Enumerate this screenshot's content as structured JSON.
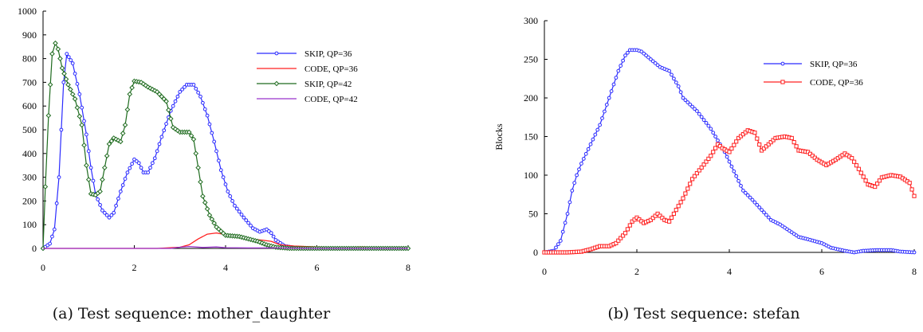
{
  "chart_data": [
    {
      "type": "line",
      "caption": "(a) Test sequence: mother_daughter",
      "xlabel": "",
      "ylabel": "",
      "xlim": [
        0,
        8
      ],
      "ylim": [
        0,
        1000
      ],
      "x_ticks": [
        0,
        2,
        4,
        6,
        8
      ],
      "y_ticks": [
        0,
        100,
        200,
        300,
        400,
        500,
        600,
        700,
        800,
        900,
        1000
      ],
      "grid": false,
      "legend_position": "top-right",
      "series": [
        {
          "name": "SKIP,   QP=36",
          "color": "#2b2bff",
          "marker": "circle",
          "points": [
            [
              0,
              0
            ],
            [
              0.15,
              20
            ],
            [
              0.25,
              80
            ],
            [
              0.35,
              300
            ],
            [
              0.45,
              700
            ],
            [
              0.52,
              820
            ],
            [
              0.65,
              780
            ],
            [
              0.8,
              650
            ],
            [
              0.95,
              480
            ],
            [
              1.05,
              340
            ],
            [
              1.15,
              230
            ],
            [
              1.3,
              160
            ],
            [
              1.45,
              130
            ],
            [
              1.55,
              150
            ],
            [
              1.7,
              240
            ],
            [
              1.85,
              320
            ],
            [
              2.0,
              375
            ],
            [
              2.1,
              360
            ],
            [
              2.2,
              320
            ],
            [
              2.3,
              320
            ],
            [
              2.45,
              380
            ],
            [
              2.6,
              470
            ],
            [
              2.8,
              580
            ],
            [
              3.0,
              660
            ],
            [
              3.15,
              690
            ],
            [
              3.3,
              690
            ],
            [
              3.45,
              640
            ],
            [
              3.6,
              560
            ],
            [
              3.75,
              450
            ],
            [
              3.9,
              330
            ],
            [
              4.05,
              240
            ],
            [
              4.2,
              180
            ],
            [
              4.4,
              130
            ],
            [
              4.6,
              85
            ],
            [
              4.75,
              70
            ],
            [
              4.9,
              80
            ],
            [
              5.0,
              65
            ],
            [
              5.1,
              35
            ],
            [
              5.3,
              10
            ],
            [
              5.6,
              0
            ],
            [
              6.0,
              0
            ],
            [
              7.0,
              0
            ],
            [
              8.0,
              0
            ]
          ]
        },
        {
          "name": "CODE, QP=36",
          "color": "#ff2020",
          "marker": "none",
          "points": [
            [
              0,
              0
            ],
            [
              2.5,
              0
            ],
            [
              3.0,
              5
            ],
            [
              3.2,
              15
            ],
            [
              3.4,
              40
            ],
            [
              3.6,
              60
            ],
            [
              3.8,
              65
            ],
            [
              4.0,
              58
            ],
            [
              4.2,
              48
            ],
            [
              4.5,
              40
            ],
            [
              4.8,
              35
            ],
            [
              5.0,
              30
            ],
            [
              5.2,
              15
            ],
            [
              5.5,
              10
            ],
            [
              6.0,
              6
            ],
            [
              6.5,
              2
            ],
            [
              7.0,
              6
            ],
            [
              7.5,
              0
            ],
            [
              8.0,
              0
            ]
          ]
        },
        {
          "name": "SKIP,   QP=42",
          "color": "#1e6b1e",
          "marker": "diamond",
          "points": [
            [
              0,
              0
            ],
            [
              0.05,
              260
            ],
            [
              0.12,
              560
            ],
            [
              0.2,
              820
            ],
            [
              0.27,
              865
            ],
            [
              0.33,
              840
            ],
            [
              0.42,
              760
            ],
            [
              0.55,
              690
            ],
            [
              0.7,
              630
            ],
            [
              0.85,
              520
            ],
            [
              0.95,
              350
            ],
            [
              1.05,
              230
            ],
            [
              1.15,
              225
            ],
            [
              1.25,
              240
            ],
            [
              1.35,
              340
            ],
            [
              1.45,
              440
            ],
            [
              1.55,
              465
            ],
            [
              1.7,
              450
            ],
            [
              1.8,
              520
            ],
            [
              1.9,
              650
            ],
            [
              2.0,
              705
            ],
            [
              2.15,
              700
            ],
            [
              2.3,
              680
            ],
            [
              2.5,
              660
            ],
            [
              2.7,
              620
            ],
            [
              2.85,
              510
            ],
            [
              3.0,
              490
            ],
            [
              3.2,
              490
            ],
            [
              3.3,
              460
            ],
            [
              3.4,
              340
            ],
            [
              3.5,
              220
            ],
            [
              3.65,
              140
            ],
            [
              3.8,
              90
            ],
            [
              4.0,
              55
            ],
            [
              4.3,
              50
            ],
            [
              4.5,
              40
            ],
            [
              4.7,
              30
            ],
            [
              4.9,
              15
            ],
            [
              5.1,
              5
            ],
            [
              5.4,
              0
            ],
            [
              6.0,
              0
            ],
            [
              7.0,
              0
            ],
            [
              8.0,
              0
            ]
          ]
        },
        {
          "name": "CODE, QP=42",
          "color": "#9933cc",
          "marker": "none",
          "points": [
            [
              0,
              0
            ],
            [
              2.8,
              0
            ],
            [
              3.0,
              5
            ],
            [
              3.2,
              8
            ],
            [
              3.5,
              4
            ],
            [
              3.8,
              6
            ],
            [
              4.0,
              3
            ],
            [
              4.5,
              2
            ],
            [
              5.0,
              2
            ],
            [
              6.0,
              0
            ],
            [
              8.0,
              0
            ]
          ]
        }
      ]
    },
    {
      "type": "line",
      "caption": "(b) Test sequence: stefan",
      "xlabel": "",
      "ylabel": "Blocks",
      "xlim": [
        0,
        8
      ],
      "ylim": [
        0,
        300
      ],
      "x_ticks": [
        0,
        2,
        4,
        6,
        8
      ],
      "y_ticks": [
        0,
        50,
        100,
        150,
        200,
        250,
        300
      ],
      "grid": false,
      "legend_position": "top-right",
      "series": [
        {
          "name": "SKIP,   QP=36",
          "color": "#2b2bff",
          "marker": "circle",
          "points": [
            [
              0,
              0
            ],
            [
              0.2,
              2
            ],
            [
              0.35,
              15
            ],
            [
              0.5,
              50
            ],
            [
              0.6,
              80
            ],
            [
              0.7,
              100
            ],
            [
              0.8,
              115
            ],
            [
              1.0,
              140
            ],
            [
              1.2,
              165
            ],
            [
              1.4,
              200
            ],
            [
              1.6,
              235
            ],
            [
              1.75,
              255
            ],
            [
              1.85,
              262
            ],
            [
              2.0,
              262
            ],
            [
              2.1,
              260
            ],
            [
              2.3,
              250
            ],
            [
              2.5,
              240
            ],
            [
              2.7,
              235
            ],
            [
              2.8,
              225
            ],
            [
              2.9,
              215
            ],
            [
              3.0,
              200
            ],
            [
              3.3,
              183
            ],
            [
              3.6,
              160
            ],
            [
              3.9,
              130
            ],
            [
              4.1,
              105
            ],
            [
              4.3,
              80
            ],
            [
              4.5,
              68
            ],
            [
              4.7,
              55
            ],
            [
              4.9,
              42
            ],
            [
              5.1,
              36
            ],
            [
              5.3,
              28
            ],
            [
              5.5,
              20
            ],
            [
              5.7,
              17
            ],
            [
              6.0,
              12
            ],
            [
              6.2,
              6
            ],
            [
              6.5,
              2
            ],
            [
              6.7,
              0
            ],
            [
              6.9,
              2
            ],
            [
              7.2,
              3
            ],
            [
              7.5,
              3
            ],
            [
              7.7,
              1
            ],
            [
              8.0,
              0
            ]
          ]
        },
        {
          "name": "CODE, QP=36",
          "color": "#ff2020",
          "marker": "square",
          "points": [
            [
              0,
              0
            ],
            [
              0.5,
              0
            ],
            [
              0.8,
              1
            ],
            [
              1.0,
              4
            ],
            [
              1.2,
              8
            ],
            [
              1.4,
              8
            ],
            [
              1.55,
              12
            ],
            [
              1.75,
              25
            ],
            [
              1.9,
              40
            ],
            [
              2.0,
              45
            ],
            [
              2.15,
              38
            ],
            [
              2.3,
              42
            ],
            [
              2.45,
              50
            ],
            [
              2.6,
              42
            ],
            [
              2.7,
              40
            ],
            [
              2.85,
              55
            ],
            [
              3.0,
              70
            ],
            [
              3.2,
              95
            ],
            [
              3.4,
              110
            ],
            [
              3.6,
              125
            ],
            [
              3.75,
              140
            ],
            [
              3.85,
              135
            ],
            [
              4.0,
              130
            ],
            [
              4.2,
              148
            ],
            [
              4.4,
              158
            ],
            [
              4.55,
              155
            ],
            [
              4.7,
              132
            ],
            [
              4.85,
              140
            ],
            [
              5.0,
              148
            ],
            [
              5.2,
              150
            ],
            [
              5.35,
              148
            ],
            [
              5.5,
              132
            ],
            [
              5.7,
              130
            ],
            [
              5.9,
              120
            ],
            [
              6.1,
              113
            ],
            [
              6.3,
              120
            ],
            [
              6.5,
              128
            ],
            [
              6.65,
              122
            ],
            [
              6.8,
              108
            ],
            [
              7.0,
              88
            ],
            [
              7.15,
              85
            ],
            [
              7.3,
              97
            ],
            [
              7.5,
              100
            ],
            [
              7.7,
              98
            ],
            [
              7.9,
              90
            ],
            [
              8.0,
              73
            ]
          ]
        }
      ]
    }
  ]
}
